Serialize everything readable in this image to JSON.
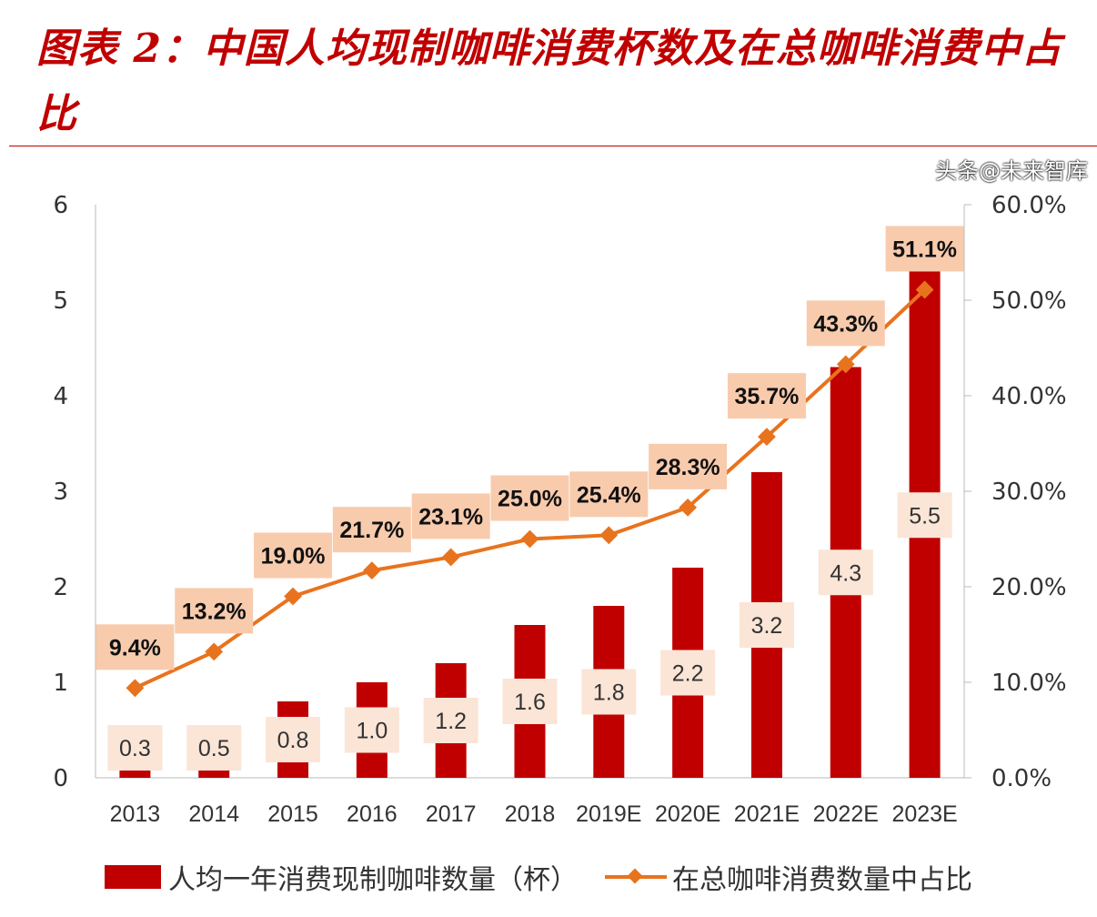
{
  "title": "图表 2：中国人均现制咖啡消费杯数及在总咖啡消费中占比",
  "watermark": "头条@未来智库",
  "chart_data": {
    "type": "bar+line",
    "categories": [
      "2013",
      "2014",
      "2015",
      "2016",
      "2017",
      "2018",
      "2019E",
      "2020E",
      "2021E",
      "2022E",
      "2023E"
    ],
    "series": [
      {
        "name": "人均一年消费现制咖啡数量（杯）",
        "type": "bar",
        "axis": "left",
        "color": "#c00000",
        "values": [
          0.3,
          0.5,
          0.8,
          1.0,
          1.2,
          1.6,
          1.8,
          2.2,
          3.2,
          4.3,
          5.5
        ],
        "labels": [
          "0.3",
          "0.5",
          "0.8",
          "1.0",
          "1.2",
          "1.6",
          "1.8",
          "2.2",
          "3.2",
          "4.3",
          "5.5"
        ]
      },
      {
        "name": "在总咖啡消费数量中占比",
        "type": "line",
        "axis": "right",
        "color": "#e8731e",
        "marker": "diamond",
        "values": [
          9.4,
          13.2,
          19.0,
          21.7,
          23.1,
          25.0,
          25.4,
          28.3,
          35.7,
          43.3,
          51.1
        ],
        "labels": [
          "9.4%",
          "13.2%",
          "19.0%",
          "21.7%",
          "23.1%",
          "25.0%",
          "25.4%",
          "28.3%",
          "35.7%",
          "43.3%",
          "51.1%"
        ]
      }
    ],
    "yleft": {
      "range": [
        0,
        6
      ],
      "ticks": [
        "0",
        "1",
        "2",
        "3",
        "4",
        "5",
        "6"
      ]
    },
    "yright": {
      "range": [
        0,
        60
      ],
      "ticks": [
        "0.0%",
        "10.0%",
        "20.0%",
        "30.0%",
        "40.0%",
        "50.0%",
        "60.0%"
      ]
    },
    "grid": false,
    "legend": "bottom"
  }
}
